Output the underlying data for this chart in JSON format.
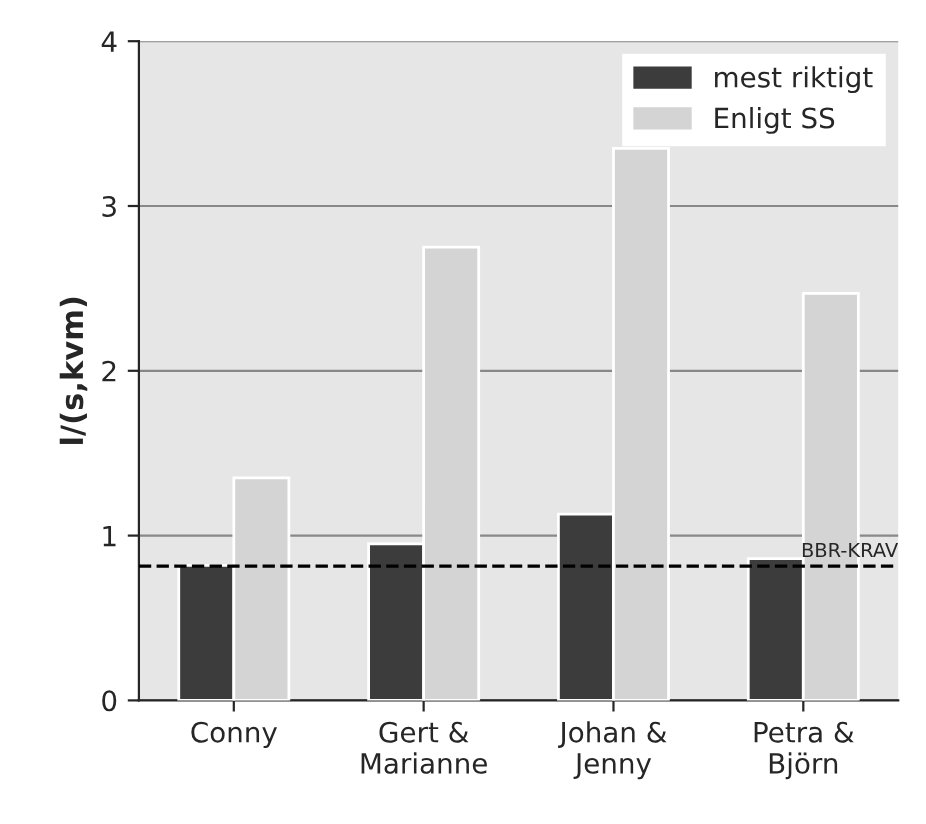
{
  "chart_data": {
    "type": "bar",
    "ylabel": "l/(s,kvm)",
    "categories": [
      "Conny",
      "Gert &\nMarianne",
      "Johan &\nJenny",
      "Petra &\nBjörn"
    ],
    "series": [
      {
        "name": "mest riktigt",
        "color": "#3c3c3c",
        "values": [
          0.82,
          0.95,
          1.13,
          0.86
        ]
      },
      {
        "name": "Enligt SS",
        "color": "#d4d4d4",
        "values": [
          1.35,
          2.75,
          3.35,
          2.47
        ]
      }
    ],
    "ylim": [
      0,
      4
    ],
    "yticks": [
      0,
      1,
      2,
      3,
      4
    ],
    "grid": "y",
    "legend": "top right",
    "ref_lines": [
      {
        "axis": "y",
        "value": 0.815,
        "label": "BBR-KRAV",
        "line_style": "dashed"
      }
    ]
  }
}
